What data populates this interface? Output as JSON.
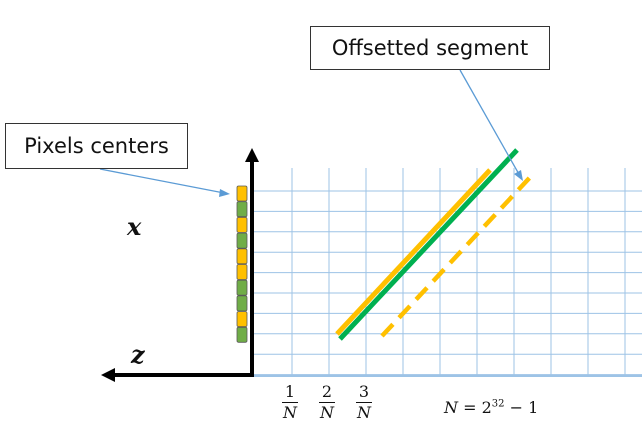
{
  "callouts": {
    "offsetted_segment": "Offsetted segment",
    "pixels_centers": "Pixels centers"
  },
  "axes": {
    "x_label": "x",
    "z_label": "z"
  },
  "ticks": [
    {
      "num": "1",
      "den": "N"
    },
    {
      "num": "2",
      "den": "N"
    },
    {
      "num": "3",
      "den": "N"
    }
  ],
  "formula": {
    "lhs": "N",
    "eq": " = 2",
    "exp": "32",
    "rhs": " − 1"
  },
  "colors": {
    "grid": "#9dc3e6",
    "segment_orange": "#ffc000",
    "segment_green": "#00b050",
    "pixel_orange": "#ffc000",
    "pixel_green": "#70ad47",
    "callout_arrow": "#5b9bd5"
  }
}
